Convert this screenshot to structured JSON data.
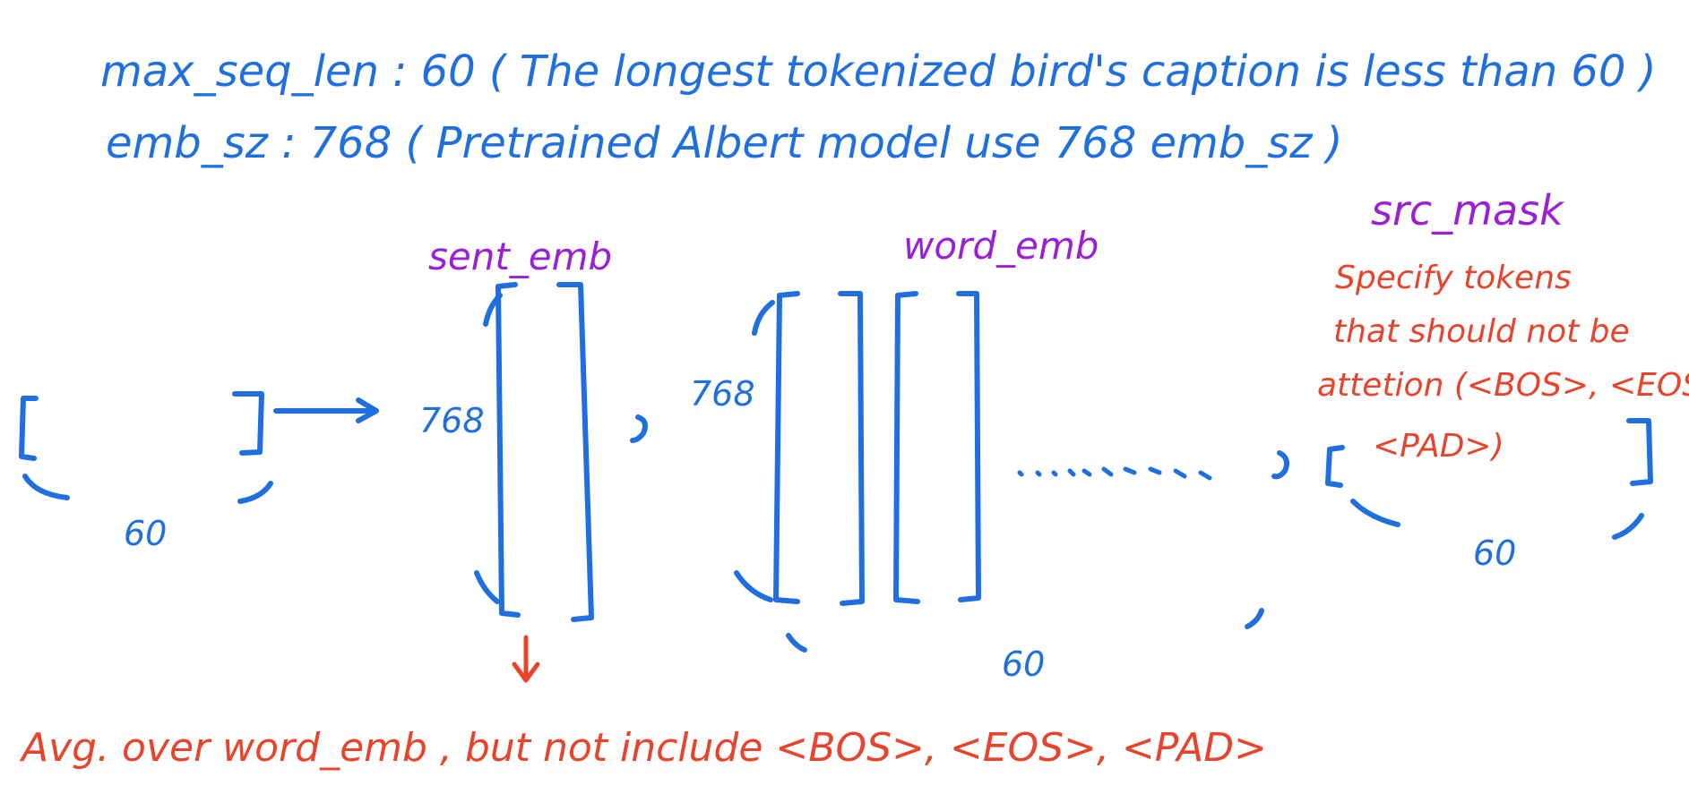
{
  "notes": {
    "line1": "max_seq_len : 60 ( The longest tokenized bird's caption is less than 60 )",
    "line2": "emb_sz : 768 ( Pretrained Albert model use 768 emb_sz )"
  },
  "labels": {
    "sent_emb": "sent_emb",
    "word_emb": "word_emb",
    "src_mask": "src_mask"
  },
  "src_mask_description": [
    "Specify tokens",
    "that should not be",
    "attetion (<BOS>, <EOS>",
    "<PAD>)"
  ],
  "dimensions": {
    "input_width": "60",
    "sent_emb_height": "768",
    "word_emb_height": "768",
    "word_emb_count": "60",
    "src_mask_width": "60"
  },
  "bottom_note": "Avg. over word_emb , but not include <BOS>, <EOS>, <PAD>",
  "colors": {
    "blue": "#1f6fe0",
    "purple": "#9b1fd6",
    "red": "#e8442c"
  }
}
